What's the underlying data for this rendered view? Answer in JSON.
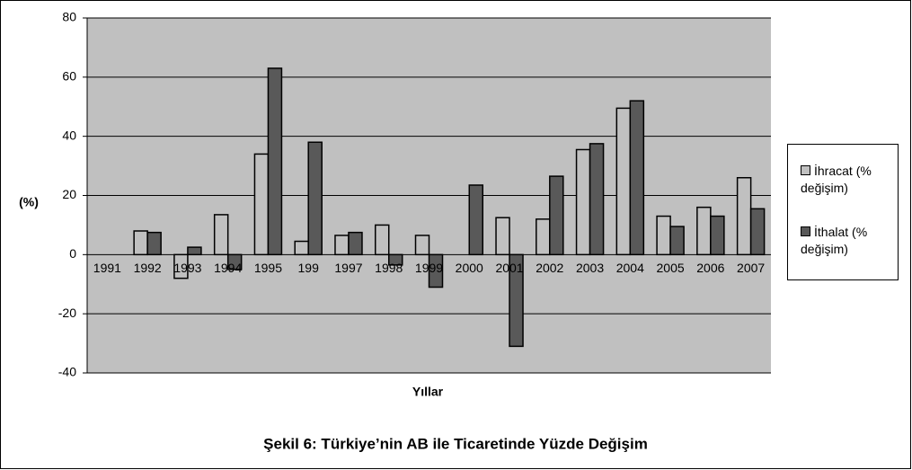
{
  "chart_data": {
    "type": "bar",
    "title": "Şekil 6: Türkiye’nin AB ile Ticaretinde Yüzde Değişim",
    "x_label": "Yıllar",
    "y_label": "(%)",
    "categories": [
      "1991",
      "1992",
      "1993",
      "1994",
      "1995",
      "199",
      "1997",
      "1998",
      "1999",
      "2000",
      "2001",
      "2002",
      "2003",
      "2004",
      "2005",
      "2006",
      "2007"
    ],
    "series": [
      {
        "name": "İhracat (% değişim)",
        "color": "#c0c0c0",
        "values": [
          0,
          8,
          -8,
          13.5,
          34,
          4.5,
          6.5,
          10,
          6.5,
          0,
          12.5,
          12,
          35.5,
          49.5,
          13,
          16,
          26
        ]
      },
      {
        "name": "İthalat (% değişim)",
        "color": "#595959",
        "values": [
          0,
          7.5,
          2.5,
          -5,
          63,
          38,
          7.5,
          -3.5,
          -11,
          23.5,
          -31,
          26.5,
          37.5,
          52,
          9.5,
          13,
          15.5
        ]
      }
    ],
    "ylim": [
      -40,
      80
    ],
    "yticks": [
      -40,
      -20,
      0,
      20,
      40,
      60,
      80
    ],
    "grid": true,
    "legend": "right"
  }
}
